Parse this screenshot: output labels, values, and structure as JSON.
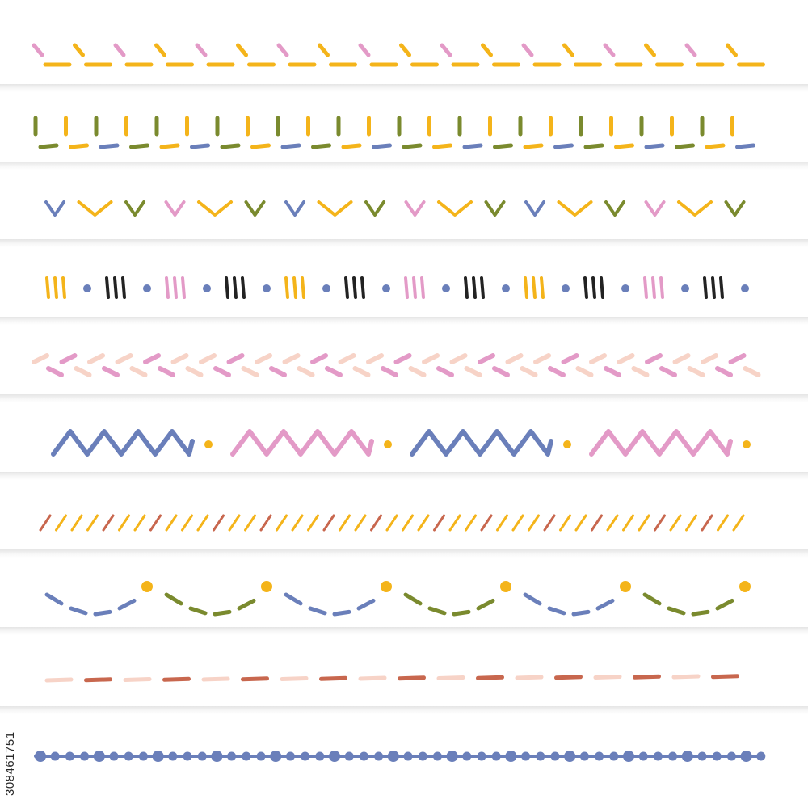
{
  "stock_id": "308461751",
  "colors": {
    "yellow": "#f4b41a",
    "pink": "#e39ac7",
    "olive": "#7a8a2e",
    "blue": "#6a7fba",
    "black": "#222222",
    "peach": "#f7d3c7",
    "rust": "#c8674e",
    "background": "#ffffff"
  },
  "borders": [
    {
      "name": "tick-and-dash-border",
      "colors": [
        "yellow",
        "pink"
      ]
    },
    {
      "name": "bracket-stitch-border",
      "colors": [
        "olive",
        "yellow",
        "blue"
      ]
    },
    {
      "name": "chevron-border",
      "colors": [
        "blue",
        "yellow",
        "olive",
        "pink"
      ]
    },
    {
      "name": "triple-stroke-border",
      "colors": [
        "yellow",
        "black",
        "pink",
        "blue"
      ]
    },
    {
      "name": "herringbone-border",
      "colors": [
        "peach",
        "pink"
      ]
    },
    {
      "name": "zigzag-border",
      "colors": [
        "blue",
        "pink",
        "yellow"
      ]
    },
    {
      "name": "diagonal-hatch-border",
      "colors": [
        "rust",
        "yellow"
      ]
    },
    {
      "name": "scallop-border",
      "colors": [
        "blue",
        "olive",
        "yellow"
      ]
    },
    {
      "name": "dashed-line-border",
      "colors": [
        "peach",
        "rust"
      ]
    },
    {
      "name": "beaded-line-border",
      "colors": [
        "blue"
      ]
    }
  ]
}
